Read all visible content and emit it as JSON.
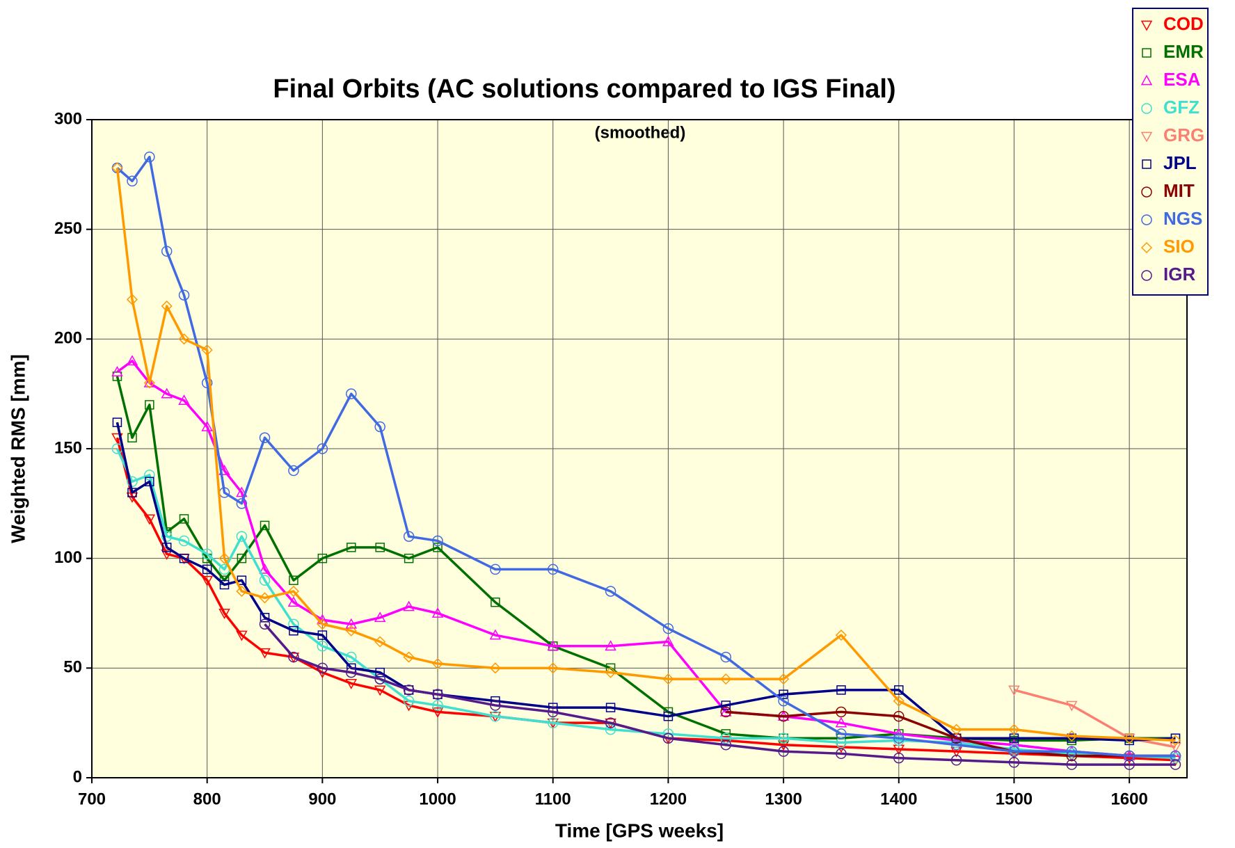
{
  "chart_data": {
    "type": "line",
    "title": "Final Orbits (AC solutions compared to IGS Final)",
    "subtitle": "(smoothed)",
    "x_label": "Time [GPS weeks]",
    "y_label": "Weighted RMS [mm]",
    "xlim": [
      700,
      1650
    ],
    "xticks": [
      700,
      800,
      900,
      1000,
      1100,
      1200,
      1300,
      1400,
      1500,
      1600
    ],
    "ylim": [
      0,
      300
    ],
    "yticks": [
      0,
      50,
      100,
      150,
      200,
      250,
      300
    ],
    "grid": true,
    "legend": "upper right",
    "background": "#ffffdd",
    "x": [
      722,
      735,
      750,
      765,
      780,
      800,
      815,
      830,
      850,
      875,
      900,
      925,
      950,
      975,
      1000,
      1050,
      1100,
      1150,
      1200,
      1250,
      1300,
      1350,
      1400,
      1450,
      1500,
      1550,
      1600,
      1640
    ],
    "series": [
      {
        "name": "COD",
        "color": "#ff0000",
        "marker": "triangle-down",
        "values": [
          155,
          128,
          118,
          102,
          100,
          90,
          75,
          65,
          57,
          55,
          48,
          43,
          40,
          33,
          30,
          28,
          25,
          25,
          18,
          17,
          15,
          14,
          13,
          12,
          11,
          10,
          9,
          8
        ]
      },
      {
        "name": "EMR",
        "color": "#007000",
        "marker": "square",
        "values": [
          183,
          155,
          170,
          112,
          118,
          100,
          90,
          100,
          115,
          90,
          100,
          105,
          105,
          100,
          105,
          80,
          60,
          50,
          30,
          20,
          18,
          18,
          20,
          18,
          17,
          17,
          18,
          18
        ]
      },
      {
        "name": "ESA",
        "color": "#ff00ff",
        "marker": "triangle-up",
        "values": [
          185,
          190,
          180,
          175,
          172,
          160,
          140,
          130,
          95,
          80,
          72,
          70,
          73,
          78,
          75,
          65,
          60,
          60,
          62,
          30,
          28,
          25,
          20,
          17,
          15,
          12,
          10,
          10
        ]
      },
      {
        "name": "GFZ",
        "color": "#40e0d0",
        "marker": "circle",
        "values": [
          150,
          135,
          138,
          110,
          108,
          102,
          95,
          110,
          90,
          70,
          60,
          55,
          45,
          35,
          33,
          28,
          25,
          22,
          20,
          18,
          18,
          16,
          17,
          16,
          13,
          11,
          10,
          9
        ]
      },
      {
        "name": "GRG",
        "color": "#fa8072",
        "marker": "triangle-down",
        "values": [
          null,
          null,
          null,
          null,
          null,
          null,
          null,
          null,
          null,
          null,
          null,
          null,
          null,
          null,
          null,
          null,
          null,
          null,
          null,
          null,
          null,
          null,
          null,
          null,
          40,
          33,
          18,
          14
        ]
      },
      {
        "name": "JPL",
        "color": "#00008b",
        "marker": "square",
        "values": [
          162,
          130,
          135,
          105,
          100,
          95,
          88,
          90,
          73,
          67,
          65,
          50,
          48,
          40,
          38,
          35,
          32,
          32,
          28,
          33,
          38,
          40,
          40,
          18,
          18,
          18,
          17,
          18
        ]
      },
      {
        "name": "MIT",
        "color": "#8b0000",
        "marker": "circle",
        "values": [
          null,
          null,
          null,
          null,
          null,
          null,
          null,
          null,
          null,
          null,
          null,
          null,
          null,
          null,
          null,
          null,
          null,
          null,
          null,
          30,
          28,
          30,
          28,
          18,
          12,
          10,
          10,
          10
        ]
      },
      {
        "name": "NGS",
        "color": "#4169e1",
        "marker": "circle",
        "values": [
          278,
          272,
          283,
          240,
          220,
          180,
          130,
          125,
          155,
          140,
          150,
          175,
          160,
          110,
          108,
          95,
          95,
          85,
          68,
          55,
          35,
          20,
          18,
          15,
          12,
          12,
          10,
          10
        ]
      },
      {
        "name": "SIO",
        "color": "#ff9900",
        "marker": "diamond",
        "values": [
          278,
          218,
          180,
          215,
          200,
          195,
          100,
          85,
          82,
          85,
          70,
          67,
          62,
          55,
          52,
          50,
          50,
          48,
          45,
          45,
          45,
          65,
          35,
          22,
          22,
          19,
          18,
          17
        ]
      },
      {
        "name": "IGR",
        "color": "#551a8b",
        "marker": "circle",
        "values": [
          null,
          null,
          null,
          null,
          null,
          null,
          null,
          null,
          70,
          55,
          50,
          48,
          45,
          40,
          38,
          33,
          30,
          25,
          18,
          15,
          12,
          11,
          9,
          8,
          7,
          6,
          6,
          6
        ]
      }
    ]
  }
}
